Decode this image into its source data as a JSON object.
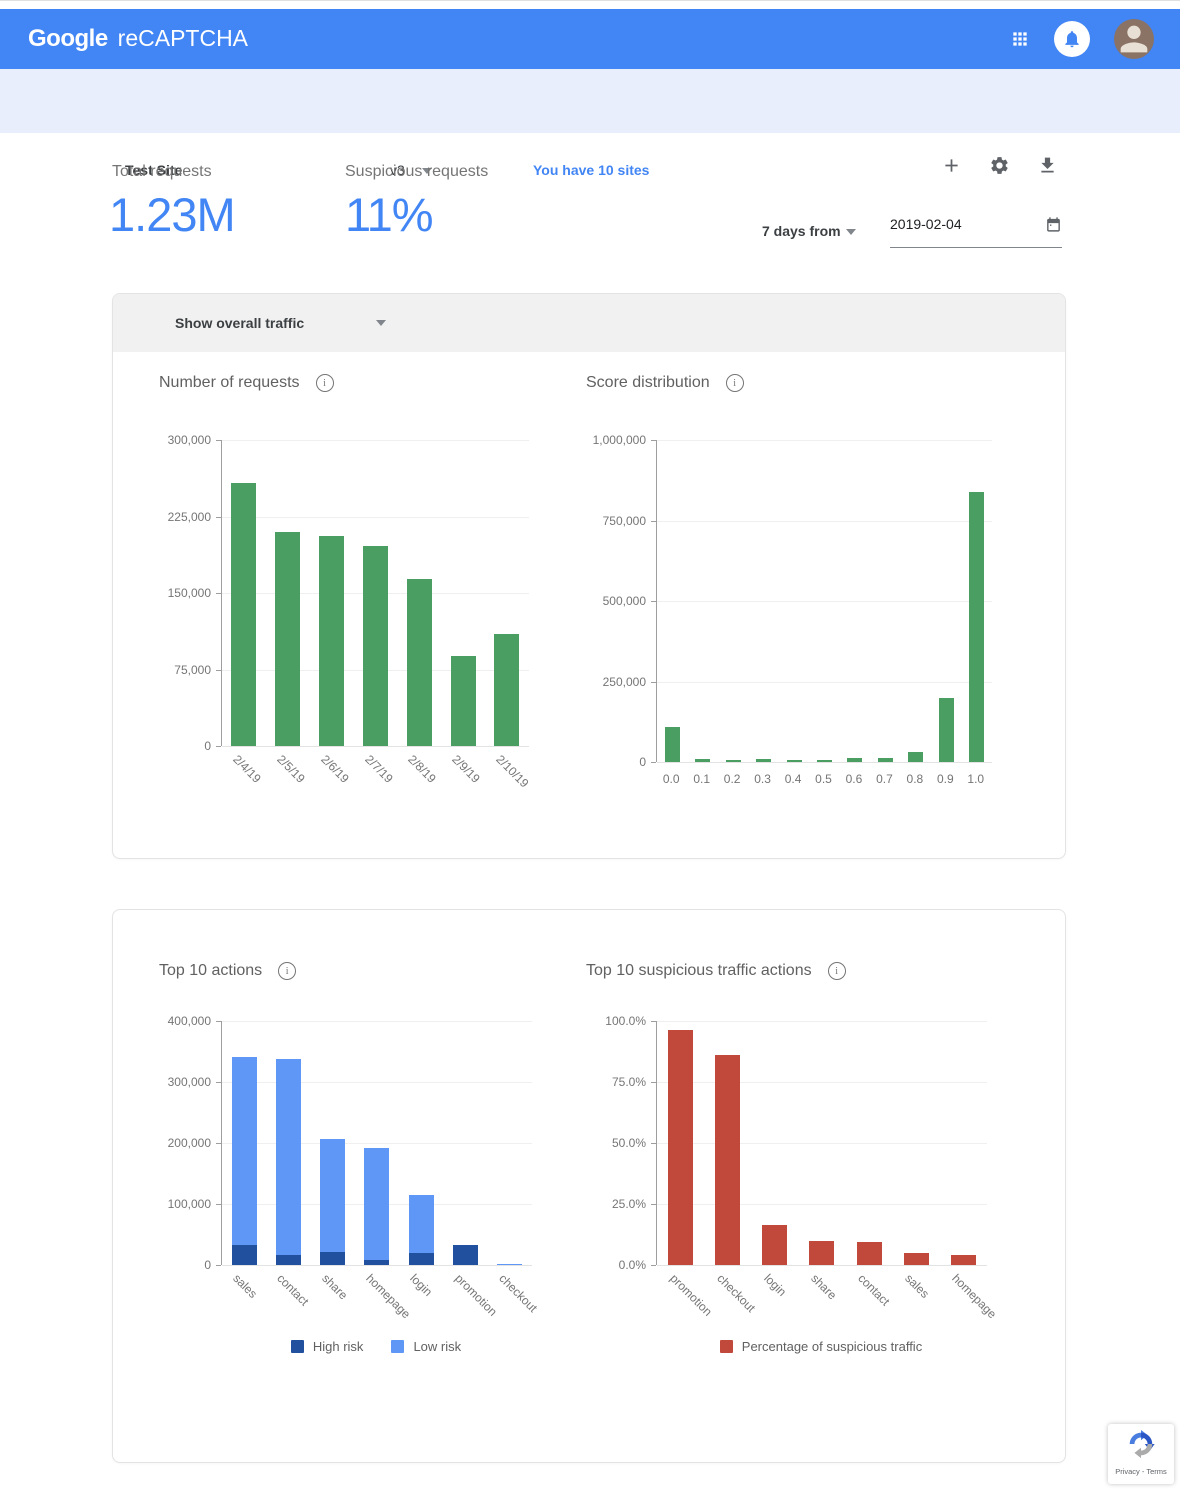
{
  "app": {
    "brand": "Google",
    "product": "reCAPTCHA"
  },
  "toolbar": {
    "site_name": "Test Site",
    "version": "v3",
    "sites_link": "You have 10 sites"
  },
  "stats": {
    "total_label": "Total requests",
    "total_value": "1.23M",
    "suspicious_label": "Suspicious requests",
    "suspicious_value": "11%"
  },
  "date_filter": {
    "range_label": "7 days from",
    "date_value": "2019-02-04"
  },
  "traffic_card": {
    "filter_label": "Show overall traffic"
  },
  "colors": {
    "header_blue": "#4285f4",
    "toolbar_bg": "#e8eefb",
    "accent_blue": "#4285f4",
    "green": "#4b9e62",
    "low_risk_blue": "#5e97f6",
    "high_risk_blue": "#20509e",
    "red": "#c0493c"
  },
  "chart_data": [
    {
      "type": "bar",
      "title": "Number of requests",
      "categories": [
        "2/4/19",
        "2/5/19",
        "2/6/19",
        "2/7/19",
        "2/8/19",
        "2/9/19",
        "2/10/19"
      ],
      "values": [
        258000,
        210000,
        206000,
        196000,
        164000,
        88000,
        110000
      ],
      "y_ticks": [
        "300,000",
        "225,000",
        "150,000",
        "75,000",
        "0"
      ],
      "ymax": 300000,
      "bar_color": "#4b9e62",
      "grid": true,
      "legend_position": "none"
    },
    {
      "type": "bar",
      "title": "Score distribution",
      "categories": [
        "0.0",
        "0.1",
        "0.2",
        "0.3",
        "0.4",
        "0.5",
        "0.6",
        "0.7",
        "0.8",
        "0.9",
        "1.0"
      ],
      "values": [
        110000,
        8000,
        6000,
        10000,
        7000,
        7000,
        14000,
        11000,
        30000,
        200000,
        840000
      ],
      "y_ticks": [
        "1,000,000",
        "750,000",
        "500,000",
        "250,000",
        "0"
      ],
      "ymax": 1000000,
      "bar_color": "#4b9e62",
      "grid": true,
      "legend_position": "none"
    },
    {
      "type": "stacked-bar",
      "title": "Top 10 actions",
      "categories": [
        "sales",
        "contact",
        "share",
        "homepage",
        "login",
        "promotion",
        "checkout"
      ],
      "series": [
        {
          "name": "High risk",
          "color": "#20509e",
          "values": [
            33000,
            16000,
            22000,
            9000,
            19000,
            33000,
            0
          ]
        },
        {
          "name": "Low risk",
          "color": "#5e97f6",
          "values": [
            309000,
            323000,
            186000,
            184000,
            98000,
            0,
            3000
          ]
        }
      ],
      "y_ticks": [
        "400,000",
        "300,000",
        "200,000",
        "100,000",
        "0"
      ],
      "ymax": 400000,
      "grid": true,
      "legend_position": "bottom"
    },
    {
      "type": "bar",
      "title": "Top 10 suspicious traffic actions",
      "categories": [
        "promotion",
        "checkout",
        "login",
        "share",
        "contact",
        "sales",
        "homepage"
      ],
      "values": [
        96.5,
        86,
        16.5,
        10,
        9.5,
        5,
        4
      ],
      "y_ticks": [
        "100.0%",
        "75.0%",
        "50.0%",
        "25.0%",
        "0.0%"
      ],
      "ymax": 100,
      "bar_color": "#c0493c",
      "legend": [
        "Percentage of suspicious traffic"
      ],
      "grid": true,
      "legend_position": "bottom"
    }
  ],
  "badge": {
    "label": "Privacy - Terms"
  }
}
